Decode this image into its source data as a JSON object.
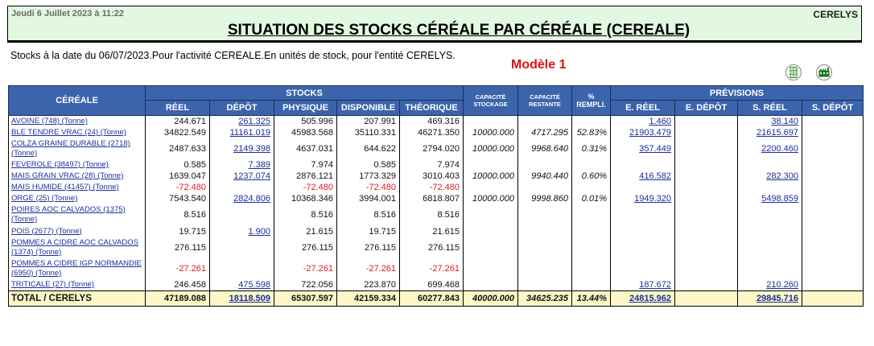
{
  "header": {
    "date": "Jeudi 6 Juillet 2023 à 11:22",
    "company": "CERELYS",
    "title": "SITUATION DES STOCKS CÉRÉALE PAR CÉRÉALE (CEREALE)"
  },
  "subtitle": "Stocks à la date du 06/07/2023.Pour l'activité CEREALE.En unités de stock, pour l'entité CERELYS.",
  "model_label": "Modèle 1",
  "toolbar": {
    "icons": [
      {
        "name": "column-layout-icon",
        "color": "#2e8b2e"
      },
      {
        "name": "factory-icon",
        "color": "#1f7a1f"
      }
    ]
  },
  "table": {
    "group_headers": {
      "cereale": "CÉRÉALE",
      "stocks": "STOCKS",
      "cap_stockage_1": "CAPACITÉ",
      "cap_stockage_2": "STOCKAGE",
      "cap_restante_1": "CAPACITÉ",
      "cap_restante_2": "RESTANTE",
      "pct_1": "%",
      "pct_2": "REMPLI.",
      "previsions": "PRÉVISIONS"
    },
    "sub_headers": {
      "reel": "RÉEL",
      "depot": "DÉPÔT",
      "physique": "PHYSIQUE",
      "disponible": "DISPONIBLE",
      "theorique": "THÉORIQUE",
      "e_reel": "E. RÉEL",
      "e_depot": "E. DÉPÔT",
      "s_reel": "S. RÉEL",
      "s_depot": "S. DÉPÔT"
    },
    "rows": [
      {
        "name": "AVOINE (748) (Tonne)",
        "reel": "244.671",
        "depot": "261.325",
        "physique": "505.996",
        "disponible": "207.991",
        "theorique": "469.316",
        "cap_stockage": "",
        "cap_restante": "",
        "pct": "",
        "e_reel": "1.460",
        "e_depot": "",
        "s_reel": "38.140",
        "s_depot": "",
        "negative": false
      },
      {
        "name": "BLE TENDRE VRAC (24) (Tonne)",
        "reel": "34822.549",
        "depot": "11161.019",
        "physique": "45983.568",
        "disponible": "35110.331",
        "theorique": "46271.350",
        "cap_stockage": "10000.000",
        "cap_restante": "4717.295",
        "pct": "52.83%",
        "e_reel": "21903.479",
        "e_depot": "",
        "s_reel": "21615.697",
        "s_depot": "",
        "negative": false
      },
      {
        "name": "COLZA GRAINE DURABLE (2718) (Tonne)",
        "reel": "2487.633",
        "depot": "2149.398",
        "physique": "4637.031",
        "disponible": "644.622",
        "theorique": "2794.020",
        "cap_stockage": "10000.000",
        "cap_restante": "9968.640",
        "pct": "0.31%",
        "e_reel": "357.449",
        "e_depot": "",
        "s_reel": "2200.460",
        "s_depot": "",
        "negative": false
      },
      {
        "name": "FEVEROLE (38497) (Tonne)",
        "reel": "0.585",
        "depot": "7.389",
        "physique": "7.974",
        "disponible": "0.585",
        "theorique": "7.974",
        "cap_stockage": "",
        "cap_restante": "",
        "pct": "",
        "e_reel": "",
        "e_depot": "",
        "s_reel": "",
        "s_depot": "",
        "negative": false
      },
      {
        "name": "MAIS GRAIN VRAC (28) (Tonne)",
        "reel": "1639.047",
        "depot": "1237.074",
        "physique": "2876.121",
        "disponible": "1773.329",
        "theorique": "3010.403",
        "cap_stockage": "10000.000",
        "cap_restante": "9940.440",
        "pct": "0.60%",
        "e_reel": "416.582",
        "e_depot": "",
        "s_reel": "282.300",
        "s_depot": "",
        "negative": false
      },
      {
        "name": "MAIS HUMIDE (41457) (Tonne)",
        "reel": "-72.480",
        "depot": "",
        "physique": "-72.480",
        "disponible": "-72.480",
        "theorique": "-72.480",
        "cap_stockage": "",
        "cap_restante": "",
        "pct": "",
        "e_reel": "",
        "e_depot": "",
        "s_reel": "",
        "s_depot": "",
        "negative": true
      },
      {
        "name": "ORGE (25) (Tonne)",
        "reel": "7543.540",
        "depot": "2824.806",
        "physique": "10368.346",
        "disponible": "3994.001",
        "theorique": "6818.807",
        "cap_stockage": "10000.000",
        "cap_restante": "9998.860",
        "pct": "0.01%",
        "e_reel": "1949.320",
        "e_depot": "",
        "s_reel": "5498.859",
        "s_depot": "",
        "negative": false
      },
      {
        "name": "POIRES AOC CALVADOS (1375) (Tonne)",
        "reel": "8.516",
        "depot": "",
        "physique": "8.516",
        "disponible": "8.516",
        "theorique": "8.516",
        "cap_stockage": "",
        "cap_restante": "",
        "pct": "",
        "e_reel": "",
        "e_depot": "",
        "s_reel": "",
        "s_depot": "",
        "negative": false
      },
      {
        "name": "POIS (2677) (Tonne)",
        "reel": "19.715",
        "depot": "1.900",
        "physique": "21.615",
        "disponible": "19.715",
        "theorique": "21.615",
        "cap_stockage": "",
        "cap_restante": "",
        "pct": "",
        "e_reel": "",
        "e_depot": "",
        "s_reel": "",
        "s_depot": "",
        "negative": false
      },
      {
        "name": "POMMES  A CIDRE AOC CALVADOS (1374) (Tonne)",
        "reel": "276.115",
        "depot": "",
        "physique": "276.115",
        "disponible": "276.115",
        "theorique": "276.115",
        "cap_stockage": "",
        "cap_restante": "",
        "pct": "",
        "e_reel": "",
        "e_depot": "",
        "s_reel": "",
        "s_depot": "",
        "negative": false
      },
      {
        "name": "POMMES  A CIDRE IGP NORMANDIE (6950) (Tonne)",
        "reel": "-27.261",
        "depot": "",
        "physique": "-27.261",
        "disponible": "-27.261",
        "theorique": "-27.261",
        "cap_stockage": "",
        "cap_restante": "",
        "pct": "",
        "e_reel": "",
        "e_depot": "",
        "s_reel": "",
        "s_depot": "",
        "negative": true
      },
      {
        "name": "TRITICALE (27) (Tonne)",
        "reel": "246.458",
        "depot": "475.598",
        "physique": "722.056",
        "disponible": "223.870",
        "theorique": "699.468",
        "cap_stockage": "",
        "cap_restante": "",
        "pct": "",
        "e_reel": "187.672",
        "e_depot": "",
        "s_reel": "210.260",
        "s_depot": "",
        "negative": false
      }
    ],
    "total": {
      "name": "TOTAL / CERELYS",
      "reel": "47189.088",
      "depot": "18118.509",
      "physique": "65307.597",
      "disponible": "42159.334",
      "theorique": "60277.843",
      "cap_stockage": "40000.000",
      "cap_restante": "34625.235",
      "pct": "13.44%",
      "e_reel": "24815.962",
      "e_depot": "",
      "s_reel": "29845.716",
      "s_depot": ""
    }
  },
  "colors": {
    "header_bg": "#3c64ac",
    "title_bg": "#e3f8e1",
    "total_bg": "#fdf8c8",
    "link": "#1c2d9a",
    "negative": "#d42020",
    "model_label": "#e01010"
  }
}
